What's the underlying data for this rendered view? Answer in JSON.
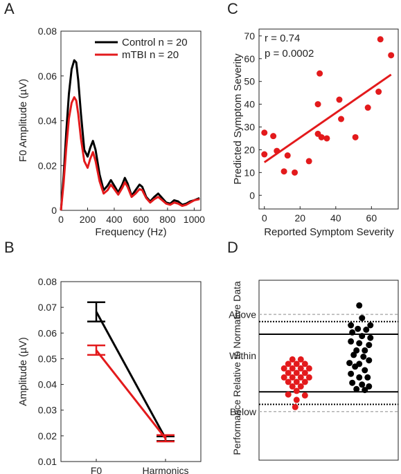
{
  "colors": {
    "control": "#000000",
    "mtbi": "#e31a1c",
    "grid_gray": "#b0b0b0"
  },
  "panels": {
    "A": {
      "letter": "A"
    },
    "B": {
      "letter": "B"
    },
    "C": {
      "letter": "C"
    },
    "D": {
      "letter": "D"
    }
  },
  "chart_data": [
    {
      "panel": "A",
      "type": "line",
      "xlabel": "Frequency (Hz)",
      "ylabel": "F0 Amplitude (µV)",
      "xlim": [
        0,
        1050
      ],
      "ylim": [
        0,
        0.08
      ],
      "xticks": [
        0,
        200,
        400,
        600,
        800,
        1000
      ],
      "yticks": [
        0,
        0.02,
        0.04,
        0.06,
        0.08
      ],
      "ytick_labels": [
        "0",
        "0.02",
        "0.04",
        "0.06",
        "0.08"
      ],
      "legend_position": "top-right",
      "series": [
        {
          "name": "Control n = 20",
          "color": "#000000",
          "x": [
            0,
            20,
            40,
            60,
            80,
            100,
            115,
            130,
            150,
            175,
            200,
            220,
            240,
            260,
            290,
            320,
            350,
            375,
            400,
            430,
            460,
            480,
            500,
            530,
            560,
            590,
            610,
            640,
            670,
            700,
            730,
            760,
            790,
            820,
            850,
            880,
            910,
            940,
            970,
            1000,
            1040
          ],
          "y": [
            0,
            0.015,
            0.035,
            0.052,
            0.063,
            0.067,
            0.066,
            0.058,
            0.043,
            0.027,
            0.024,
            0.028,
            0.031,
            0.027,
            0.016,
            0.009,
            0.011,
            0.0135,
            0.011,
            0.008,
            0.0115,
            0.0145,
            0.012,
            0.0065,
            0.009,
            0.0115,
            0.0105,
            0.006,
            0.004,
            0.006,
            0.0075,
            0.0055,
            0.0035,
            0.003,
            0.0045,
            0.004,
            0.0025,
            0.003,
            0.004,
            0.0045,
            0.0055
          ]
        },
        {
          "name": "mTBI n = 20",
          "color": "#e31a1c",
          "x": [
            0,
            20,
            40,
            60,
            80,
            100,
            115,
            130,
            150,
            175,
            200,
            220,
            240,
            260,
            290,
            320,
            350,
            375,
            400,
            430,
            460,
            480,
            500,
            530,
            560,
            590,
            610,
            640,
            670,
            700,
            730,
            760,
            790,
            820,
            850,
            880,
            910,
            940,
            970,
            1000,
            1040
          ],
          "y": [
            0,
            0.012,
            0.028,
            0.041,
            0.048,
            0.0505,
            0.049,
            0.043,
            0.032,
            0.022,
            0.019,
            0.023,
            0.026,
            0.022,
            0.013,
            0.0075,
            0.009,
            0.0115,
            0.0095,
            0.007,
            0.01,
            0.0125,
            0.0105,
            0.006,
            0.0075,
            0.0095,
            0.009,
            0.0055,
            0.0035,
            0.005,
            0.006,
            0.0045,
            0.003,
            0.0025,
            0.0035,
            0.003,
            0.002,
            0.0025,
            0.0035,
            0.0045,
            0.005
          ]
        }
      ]
    },
    {
      "panel": "B",
      "type": "line",
      "xlabel": "",
      "ylabel": "Amplitude (µV)",
      "categories": [
        "F0",
        "Harmonics"
      ],
      "ylim": [
        0.01,
        0.08
      ],
      "yticks": [
        0.01,
        0.02,
        0.03,
        0.04,
        0.05,
        0.06,
        0.07,
        0.08
      ],
      "ytick_labels": [
        "0.01",
        "0.02",
        "0.03",
        "0.04",
        "0.05",
        "0.06",
        "0.07",
        "0.08"
      ],
      "series": [
        {
          "name": "Control",
          "color": "#000000",
          "values": [
            0.0683,
            0.019
          ],
          "err_low": [
            0.0645,
            0.018
          ],
          "err_high": [
            0.072,
            0.0198
          ]
        },
        {
          "name": "mTBI",
          "color": "#e31a1c",
          "values": [
            0.0533,
            0.019
          ],
          "err_low": [
            0.0515,
            0.0178
          ],
          "err_high": [
            0.0552,
            0.0203
          ]
        }
      ]
    },
    {
      "panel": "C",
      "type": "scatter",
      "xlabel": "Reported Symptom Severity",
      "ylabel": "Predicted Symptom Severity",
      "xlim": [
        -3,
        75
      ],
      "ylim": [
        -6,
        73
      ],
      "xticks": [
        0,
        20,
        40,
        60
      ],
      "yticks": [
        0,
        10,
        20,
        30,
        40,
        50,
        60,
        70
      ],
      "annotations": [
        "r = 0.74",
        "p = 0.0002"
      ],
      "color": "#e31a1c",
      "points": [
        [
          0,
          18
        ],
        [
          0,
          27.5
        ],
        [
          5,
          26
        ],
        [
          7,
          19.5
        ],
        [
          11,
          10.5
        ],
        [
          13,
          17.5
        ],
        [
          17,
          10
        ],
        [
          25,
          15
        ],
        [
          30,
          27
        ],
        [
          30,
          40
        ],
        [
          31,
          53.5
        ],
        [
          32,
          25.5
        ],
        [
          35,
          25
        ],
        [
          42,
          42
        ],
        [
          43,
          33.5
        ],
        [
          51,
          25.5
        ],
        [
          58,
          38.5
        ],
        [
          64,
          45.5
        ],
        [
          65,
          68.5
        ],
        [
          71,
          61.5
        ]
      ],
      "fit_line": {
        "x": [
          0,
          71
        ],
        "y": [
          14.5,
          53
        ]
      }
    },
    {
      "panel": "D",
      "type": "scatter",
      "xlabel": "",
      "ylabel": "Performance Relative to Normative Data",
      "ytick_labels": [
        "Above",
        "Within",
        "Below"
      ],
      "ylim": [
        0,
        100
      ],
      "ytick_values": [
        81,
        58,
        27
      ],
      "reference_lines": {
        "solid": [
          70,
          38
        ],
        "dotted": [
          77,
          31
        ],
        "dashed_gray": [
          81,
          27
        ]
      },
      "series": [
        {
          "name": "mTBI",
          "color": "#e31a1c",
          "x_center": 0.28,
          "points": [
            [
              0.24,
              56
            ],
            [
              0.3,
              56
            ],
            [
              0.21,
              53.5
            ],
            [
              0.27,
              53.5
            ],
            [
              0.33,
              53.5
            ],
            [
              0.18,
              51
            ],
            [
              0.24,
              51
            ],
            [
              0.3,
              51
            ],
            [
              0.36,
              51
            ],
            [
              0.21,
              48.5
            ],
            [
              0.27,
              48.5
            ],
            [
              0.33,
              48.5
            ],
            [
              0.18,
              46
            ],
            [
              0.24,
              46
            ],
            [
              0.3,
              46
            ],
            [
              0.36,
              46
            ],
            [
              0.21,
              43.5
            ],
            [
              0.27,
              43.5
            ],
            [
              0.33,
              43.5
            ],
            [
              0.24,
              41
            ],
            [
              0.3,
              41
            ],
            [
              0.27,
              38.5
            ],
            [
              0.21,
              36.5
            ],
            [
              0.33,
              36
            ],
            [
              0.27,
              33.5
            ],
            [
              0.26,
              29.5
            ]
          ]
        },
        {
          "name": "Control",
          "color": "#000000",
          "x_center": 0.73,
          "points": [
            [
              0.72,
              86
            ],
            [
              0.74,
              79
            ],
            [
              0.66,
              75
            ],
            [
              0.8,
              75
            ],
            [
              0.71,
              73
            ],
            [
              0.77,
              72.5
            ],
            [
              0.67,
              71
            ],
            [
              0.74,
              69
            ],
            [
              0.8,
              68
            ],
            [
              0.66,
              66
            ],
            [
              0.72,
              65
            ],
            [
              0.79,
              64
            ],
            [
              0.7,
              61
            ],
            [
              0.76,
              61
            ],
            [
              0.68,
              58.5
            ],
            [
              0.75,
              57.5
            ],
            [
              0.79,
              55.5
            ],
            [
              0.65,
              54
            ],
            [
              0.72,
              53.5
            ],
            [
              0.69,
              52
            ],
            [
              0.76,
              50
            ],
            [
              0.66,
              48
            ],
            [
              0.72,
              46
            ],
            [
              0.78,
              46
            ],
            [
              0.67,
              43
            ],
            [
              0.74,
              42
            ],
            [
              0.79,
              41
            ],
            [
              0.7,
              39.5
            ],
            [
              0.76,
              39
            ]
          ]
        }
      ]
    }
  ]
}
